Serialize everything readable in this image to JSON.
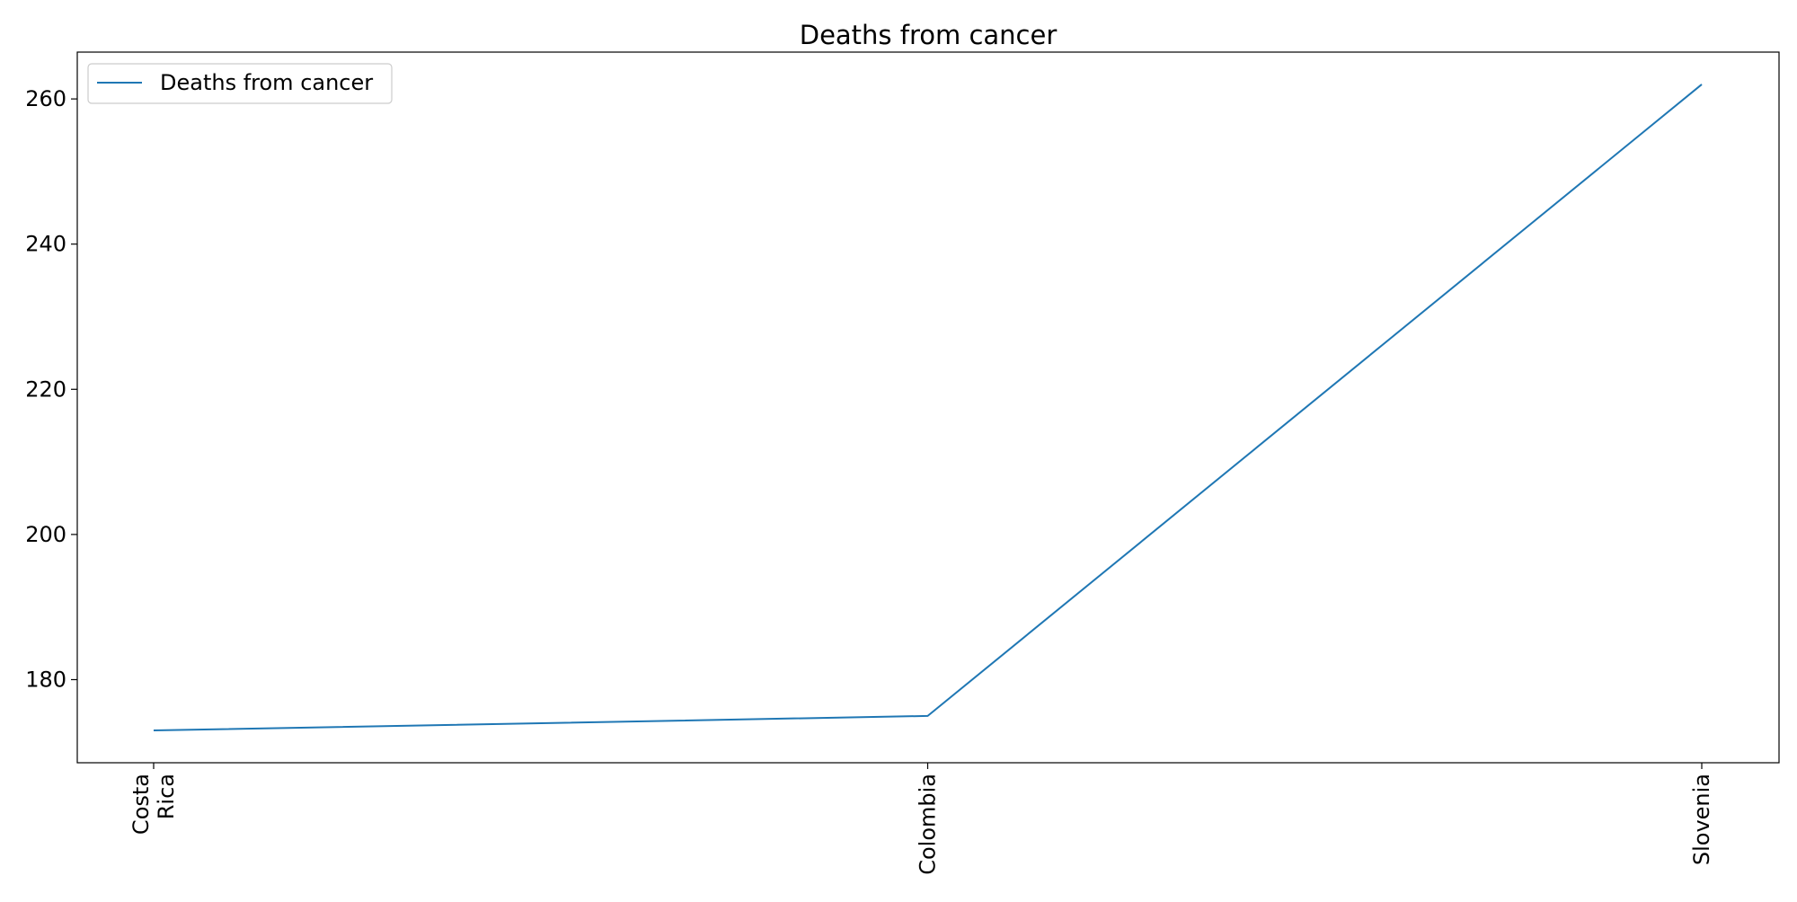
{
  "chart_data": {
    "type": "line",
    "title": "Deaths from cancer",
    "xlabel": "",
    "ylabel": "",
    "categories": [
      [
        "Costa",
        "Rica"
      ],
      [
        "Colombia"
      ],
      [
        "Slovenia"
      ]
    ],
    "series": [
      {
        "name": "Deaths from cancer",
        "values": [
          173,
          175,
          262
        ],
        "color": "#1f77b4"
      }
    ],
    "ylim": [
      168.55,
      266.45
    ],
    "yticks": [
      180,
      200,
      220,
      240,
      260
    ],
    "grid": false,
    "legend_position": "upper-left"
  }
}
